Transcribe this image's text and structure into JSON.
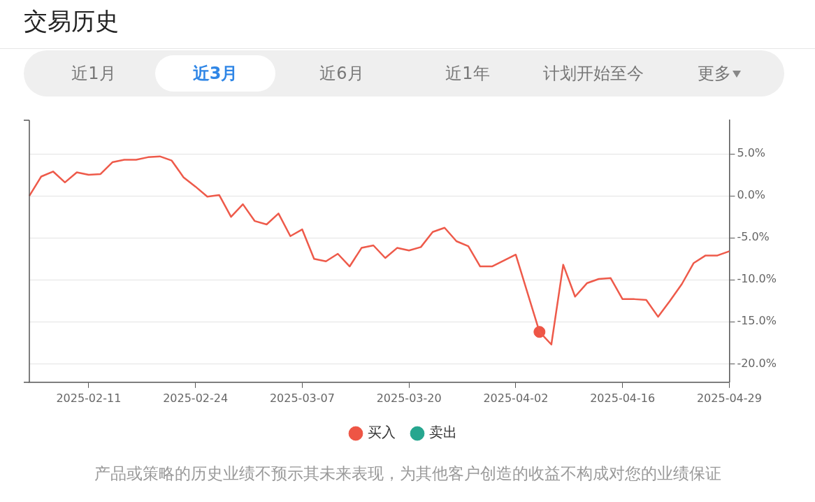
{
  "chart_data": {
    "type": "line",
    "title": "交易历史",
    "annotations": [
      "近1月",
      "近3月",
      "近6月",
      "近1年",
      "计划开始至今",
      "更多",
      "产品或策略的历史业绩不预示其未来表现，为其他客户创造的收益不构成对您的业绩保证"
    ],
    "categories": [
      null,
      null,
      null,
      null,
      null,
      "2025-02-11",
      null,
      null,
      null,
      null,
      null,
      null,
      null,
      null,
      "2025-02-24",
      null,
      null,
      null,
      null,
      null,
      null,
      null,
      null,
      "2025-03-07",
      null,
      null,
      null,
      null,
      null,
      null,
      null,
      null,
      "2025-03-20",
      null,
      null,
      null,
      null,
      null,
      null,
      null,
      null,
      "2025-04-02",
      null,
      null,
      null,
      null,
      null,
      null,
      null,
      null,
      "2025-04-16",
      null,
      null,
      null,
      null,
      null,
      null,
      null,
      null,
      "2025-04-29"
    ],
    "series": [
      {
        "name": "买入",
        "type": "scatter",
        "color": "#ee5545",
        "values": [
          null,
          null,
          null,
          null,
          null,
          null,
          null,
          null,
          null,
          null,
          null,
          null,
          null,
          null,
          null,
          null,
          null,
          null,
          null,
          null,
          null,
          null,
          null,
          null,
          null,
          null,
          null,
          null,
          null,
          null,
          null,
          null,
          null,
          null,
          null,
          null,
          null,
          null,
          null,
          null,
          null,
          null,
          null,
          -16.2,
          null,
          null,
          null,
          null,
          null,
          null,
          null,
          null,
          null,
          null,
          null,
          null,
          null,
          null,
          null,
          null
        ]
      },
      {
        "name": "卖出",
        "type": "scatter",
        "color": "#26a68f",
        "values": [
          null,
          null,
          null,
          null,
          null,
          null,
          null,
          null,
          null,
          null,
          null,
          null,
          null,
          null,
          null,
          null,
          null,
          null,
          null,
          null,
          null,
          null,
          null,
          null,
          null,
          null,
          null,
          null,
          null,
          null,
          null,
          null,
          null,
          null,
          null,
          null,
          null,
          null,
          null,
          null,
          null,
          null,
          null,
          null,
          null,
          null,
          null,
          null,
          null,
          null,
          null,
          null,
          null,
          null,
          null,
          null,
          null,
          null,
          null,
          null
        ]
      },
      {
        "color": "#ee5a4a",
        "values": [
          0,
          2.3,
          2.9,
          1.6,
          2.8,
          2.5,
          2.6,
          4.0,
          4.3,
          4.3,
          4.6,
          4.7,
          4.2,
          2.2,
          1.1,
          -0.1,
          0.1,
          -2.5,
          -1.0,
          -3.0,
          -3.4,
          -2.1,
          -4.8,
          -4.0,
          -7.5,
          -7.8,
          -6.9,
          -8.4,
          -6.2,
          -5.9,
          -7.4,
          -6.2,
          -6.5,
          -6.1,
          -4.3,
          -3.8,
          -5.4,
          -6.0,
          -8.4,
          -8.4,
          -7.7,
          -7.0,
          null,
          -16.2,
          -17.7,
          -8.2,
          -12.0,
          -10.4,
          -9.9,
          -9.8,
          -12.3,
          -12.3,
          -12.4,
          -14.4,
          -12.5,
          -10.5,
          -8.0,
          -7.1,
          -7.1,
          -6.6
        ]
      }
    ],
    "ylim": [
      -22.2,
      9
    ],
    "yticks": [
      {
        "value": -20,
        "label": "-20.0%"
      },
      {
        "value": -15,
        "label": "-15.0%"
      },
      {
        "value": -10,
        "label": "-10.0%"
      },
      {
        "value": -5,
        "label": "-5.0%"
      },
      {
        "value": 0,
        "label": "0.0%"
      },
      {
        "value": 5,
        "label": "5.0%"
      }
    ],
    "grid": "y",
    "legend": "bottom",
    "line_style": "solid"
  }
}
